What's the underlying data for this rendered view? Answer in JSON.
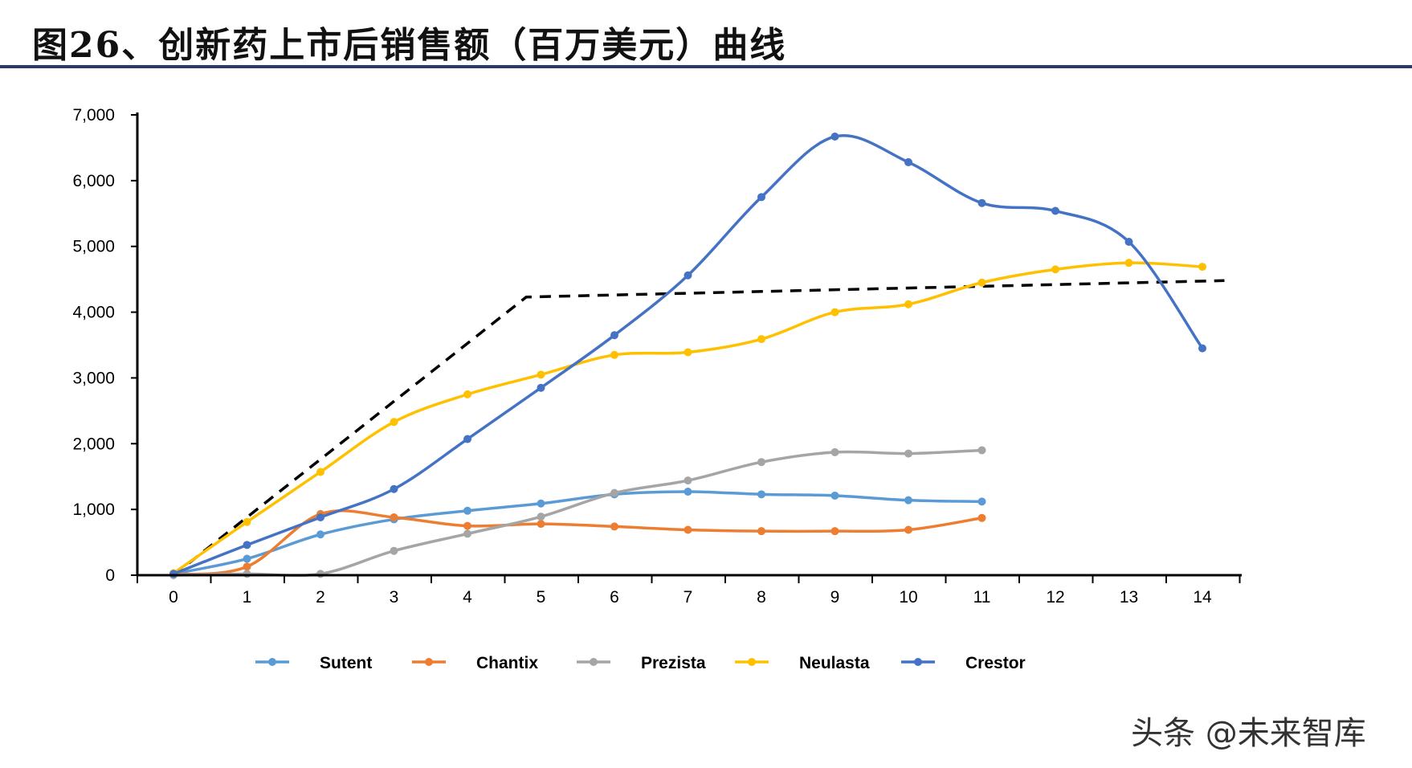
{
  "title": "图26、创新药上市后销售额（百万美元）曲线",
  "watermark": "头条 @未来智库",
  "chart_data": {
    "type": "line",
    "title": "图26、创新药上市后销售额（百万美元）曲线",
    "xlabel": "",
    "ylabel": "",
    "x": [
      0,
      1,
      2,
      3,
      4,
      5,
      6,
      7,
      8,
      9,
      10,
      11,
      12,
      13,
      14
    ],
    "xlim": [
      0,
      14
    ],
    "ylim": [
      0,
      7000
    ],
    "yticks": [
      0,
      1000,
      2000,
      3000,
      4000,
      5000,
      6000,
      7000
    ],
    "ytick_labels": [
      "0",
      "1,000",
      "2,000",
      "3,000",
      "4,000",
      "5,000",
      "6,000",
      "7,000"
    ],
    "grid": false,
    "legend_position": "bottom",
    "series": [
      {
        "name": "Sutent",
        "color": "#5b9bd5",
        "x": [
          0,
          1,
          2,
          3,
          4,
          5,
          6,
          7,
          8,
          9,
          10,
          11
        ],
        "values": [
          20,
          250,
          620,
          850,
          980,
          1090,
          1230,
          1270,
          1230,
          1210,
          1140,
          1120
        ]
      },
      {
        "name": "Chantix",
        "color": "#ed7d31",
        "x": [
          0,
          1,
          2,
          3,
          4,
          5,
          6,
          7,
          8,
          9,
          10,
          11
        ],
        "values": [
          10,
          130,
          930,
          880,
          750,
          780,
          740,
          690,
          670,
          670,
          690,
          870
        ]
      },
      {
        "name": "Prezista",
        "color": "#a5a5a5",
        "x": [
          0,
          1,
          2,
          3,
          4,
          5,
          6,
          7,
          8,
          9,
          10,
          11
        ],
        "values": [
          0,
          20,
          20,
          370,
          630,
          890,
          1250,
          1440,
          1720,
          1870,
          1850,
          1900
        ]
      },
      {
        "name": "Neulasta",
        "color": "#ffc000",
        "x": [
          0,
          1,
          2,
          3,
          4,
          5,
          6,
          7,
          8,
          9,
          10,
          11,
          12,
          13,
          14
        ],
        "values": [
          30,
          810,
          1570,
          2330,
          2750,
          3050,
          3350,
          3390,
          3590,
          4000,
          4120,
          4450,
          4650,
          4750,
          4690
        ]
      },
      {
        "name": "Crestor",
        "color": "#4472c4",
        "x": [
          0,
          1,
          2,
          3,
          4,
          5,
          6,
          7,
          8,
          9,
          10,
          11,
          12,
          13,
          14
        ],
        "values": [
          20,
          460,
          880,
          1310,
          2070,
          2850,
          3650,
          4560,
          5750,
          6670,
          6280,
          5660,
          5540,
          5070,
          3450
        ]
      }
    ],
    "trend_line": {
      "x": [
        0,
        4.8,
        14.3
      ],
      "values": [
        0,
        4230,
        4480
      ],
      "style": "dashed",
      "color": "#000000"
    }
  }
}
